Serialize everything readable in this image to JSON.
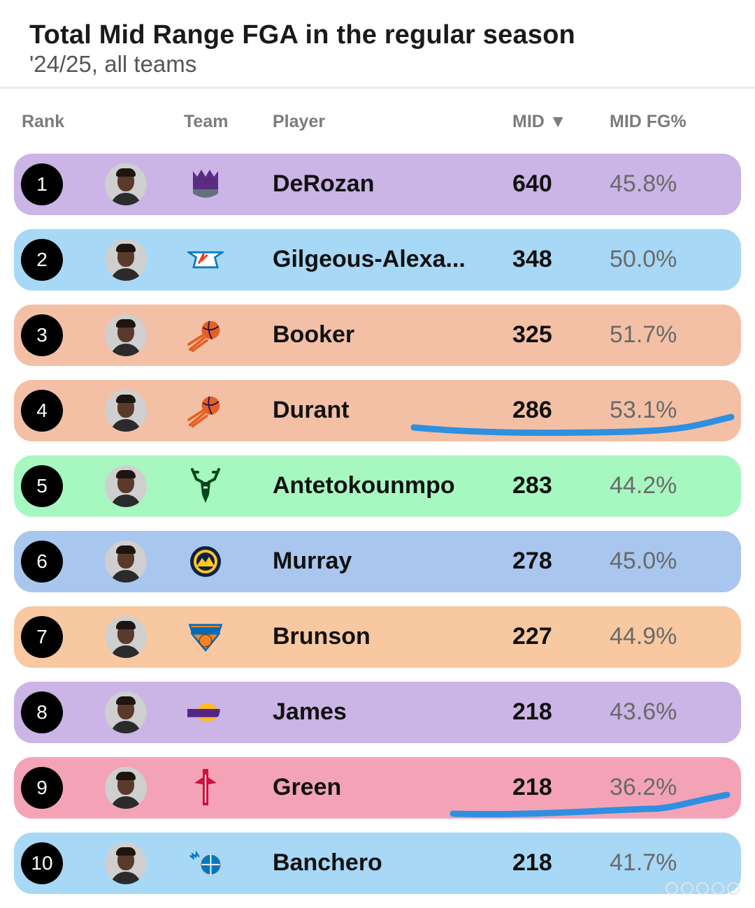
{
  "header": {
    "title": "Total Mid Range FGA in the regular season",
    "subtitle": "'24/25, all teams"
  },
  "columns": {
    "rank": "Rank",
    "team": "Team",
    "player": "Player",
    "mid": "MID ▼",
    "mid_fg": "MID FG%"
  },
  "rows": [
    {
      "rank": "1",
      "player": "DeRozan",
      "mid": "640",
      "pct": "45.8%",
      "team_icon": "kings-logo",
      "color": "#cbb4e6",
      "logo_text": "KINGS"
    },
    {
      "rank": "2",
      "player": "Gilgeous-Alexa...",
      "mid": "348",
      "pct": "50.0%",
      "team_icon": "thunder-logo",
      "color": "#a7d8f6",
      "logo_text": "OKC"
    },
    {
      "rank": "3",
      "player": "Booker",
      "mid": "325",
      "pct": "51.7%",
      "team_icon": "suns-logo",
      "color": "#f3c0a6",
      "logo_text": ""
    },
    {
      "rank": "4",
      "player": "Durant",
      "mid": "286",
      "pct": "53.1%",
      "team_icon": "suns-logo",
      "color": "#f3c0a6",
      "logo_text": ""
    },
    {
      "rank": "5",
      "player": "Antetokounmpo",
      "mid": "283",
      "pct": "44.2%",
      "team_icon": "bucks-logo",
      "color": "#a6f8c0",
      "logo_text": ""
    },
    {
      "rank": "6",
      "player": "Murray",
      "mid": "278",
      "pct": "45.0%",
      "team_icon": "nuggets-logo",
      "color": "#a9c6ee",
      "logo_text": ""
    },
    {
      "rank": "7",
      "player": "Brunson",
      "mid": "227",
      "pct": "44.9%",
      "team_icon": "knicks-logo",
      "color": "#f8c8a0",
      "logo_text": "KNICKS"
    },
    {
      "rank": "8",
      "player": "James",
      "mid": "218",
      "pct": "43.6%",
      "team_icon": "lakers-logo",
      "color": "#cbb4e6",
      "logo_text": "LAKERS"
    },
    {
      "rank": "9",
      "player": "Green",
      "mid": "218",
      "pct": "36.2%",
      "team_icon": "rockets-logo",
      "color": "#f4a3b7",
      "logo_text": ""
    },
    {
      "rank": "10",
      "player": "Banchero",
      "mid": "218",
      "pct": "41.7%",
      "team_icon": "magic-logo",
      "color": "#a7d8f6",
      "logo_text": ""
    }
  ],
  "annotation": {
    "color": "#2f8fe0"
  }
}
